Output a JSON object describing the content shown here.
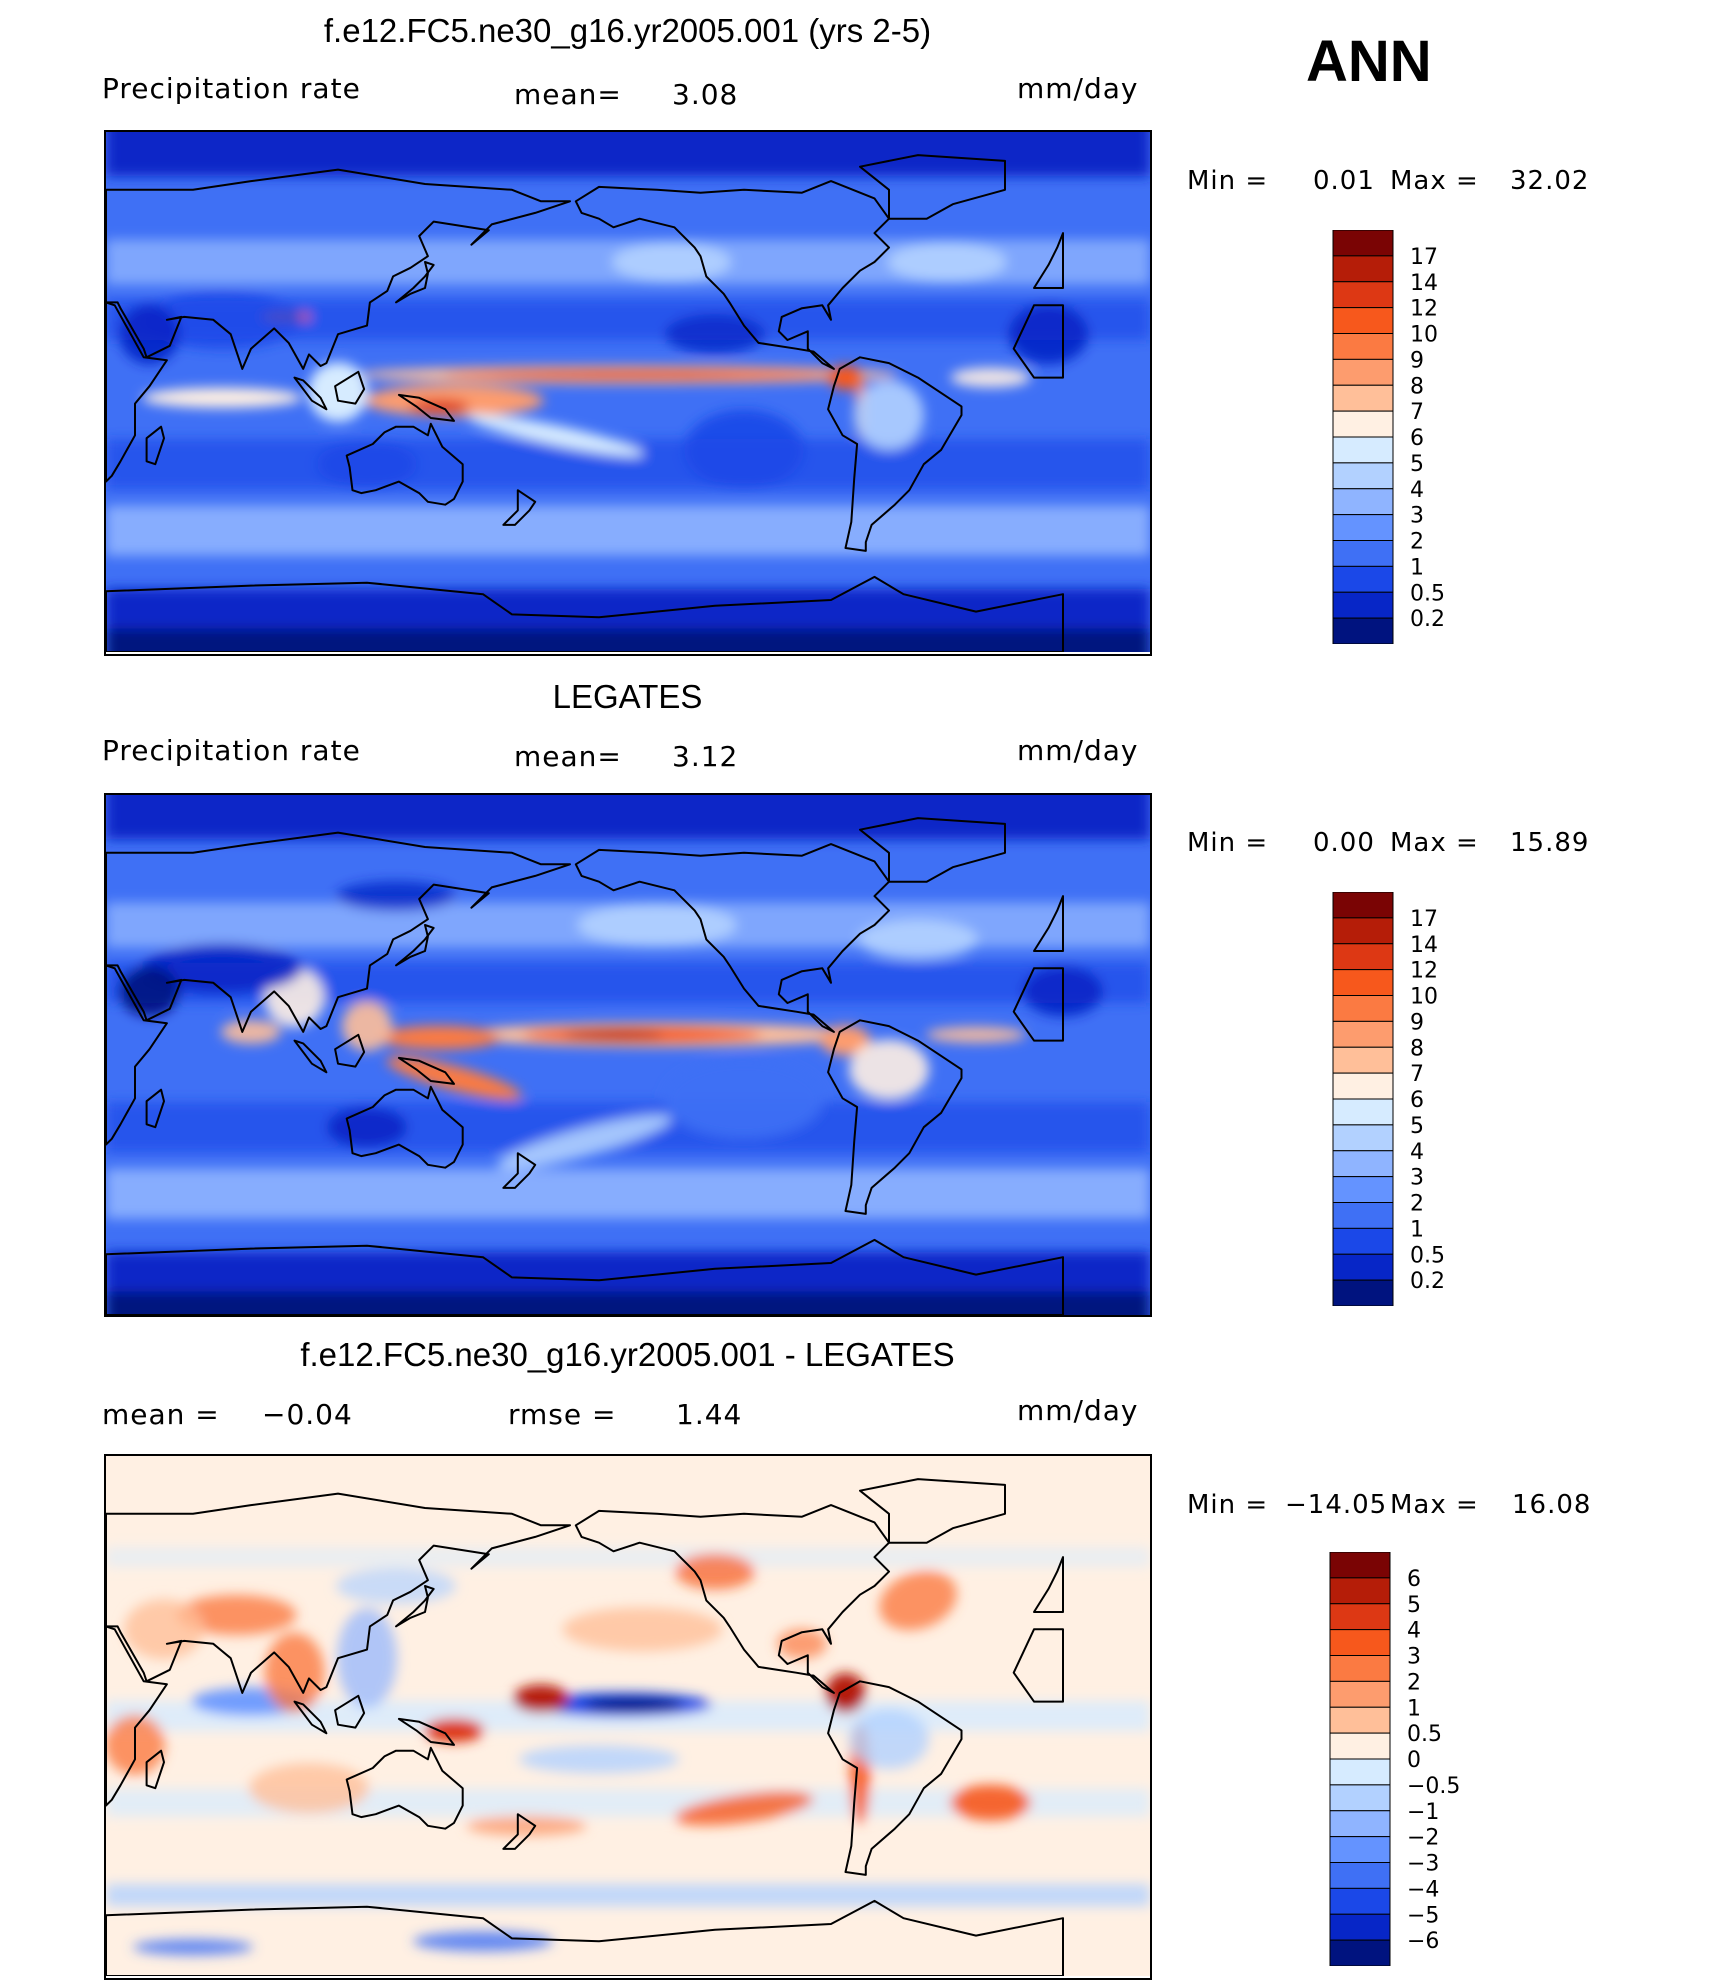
{
  "season": "ANN",
  "chart_data": [
    {
      "type": "heatmap",
      "title": "f.e12.FC5.ne30_g16.yr2005.001 (yrs 2-5)",
      "variable": "Precipitation rate",
      "stat_label": "mean=",
      "stat_value": "3.08",
      "units": "mm/day",
      "min_text": "Min =",
      "min_value": "0.01",
      "max_text": "Max =",
      "max_value": "32.02",
      "colorbar_levels": [
        "17",
        "14",
        "12",
        "10",
        "9",
        "8",
        "7",
        "6",
        "5",
        "4",
        "3",
        "2",
        "1",
        "0.5",
        "0.2"
      ],
      "colorbar_colors": [
        "#7a0404",
        "#b51d08",
        "#dd3814",
        "#f7581c",
        "#fb7a42",
        "#fd9c6e",
        "#ffbf99",
        "#fff0e3",
        "#d6ebff",
        "#b2d1ff",
        "#8fb4ff",
        "#6493ff",
        "#3f70f5",
        "#1b48e8",
        "#0726c7",
        "#00137f"
      ],
      "style": "model",
      "grid": false
    },
    {
      "type": "heatmap",
      "title": "LEGATES",
      "variable": "Precipitation rate",
      "stat_label": "mean=",
      "stat_value": "3.12",
      "units": "mm/day",
      "min_text": "Min =",
      "min_value": "0.00",
      "max_text": "Max =",
      "max_value": "15.89",
      "colorbar_levels": [
        "17",
        "14",
        "12",
        "10",
        "9",
        "8",
        "7",
        "6",
        "5",
        "4",
        "3",
        "2",
        "1",
        "0.5",
        "0.2"
      ],
      "colorbar_colors": [
        "#7a0404",
        "#b51d08",
        "#dd3814",
        "#f7581c",
        "#fb7a42",
        "#fd9c6e",
        "#ffbf99",
        "#fff0e3",
        "#d6ebff",
        "#b2d1ff",
        "#8fb4ff",
        "#6493ff",
        "#3f70f5",
        "#1b48e8",
        "#0726c7",
        "#00137f"
      ],
      "style": "obs",
      "grid": false
    },
    {
      "type": "heatmap",
      "title": "f.e12.FC5.ne30_g16.yr2005.001 - LEGATES",
      "stat_label": "mean =",
      "stat_value": "−0.04",
      "stat2_label": "rmse =",
      "stat2_value": "1.44",
      "units": "mm/day",
      "min_text": "Min =",
      "min_value": "−14.05",
      "max_text": "Max =",
      "max_value": "16.08",
      "colorbar_levels": [
        "6",
        "5",
        "4",
        "3",
        "2",
        "1",
        "0.5",
        "0",
        "−0.5",
        "−1",
        "−2",
        "−3",
        "−4",
        "−5",
        "−6"
      ],
      "colorbar_colors": [
        "#7a0404",
        "#b51d08",
        "#dd3814",
        "#f7581c",
        "#fb7a42",
        "#fd9c6e",
        "#ffbf99",
        "#fff0e3",
        "#d6ebff",
        "#b2d1ff",
        "#8fb4ff",
        "#6493ff",
        "#3f70f5",
        "#1b48e8",
        "#0726c7",
        "#00137f"
      ],
      "style": "diff",
      "grid": false
    }
  ]
}
